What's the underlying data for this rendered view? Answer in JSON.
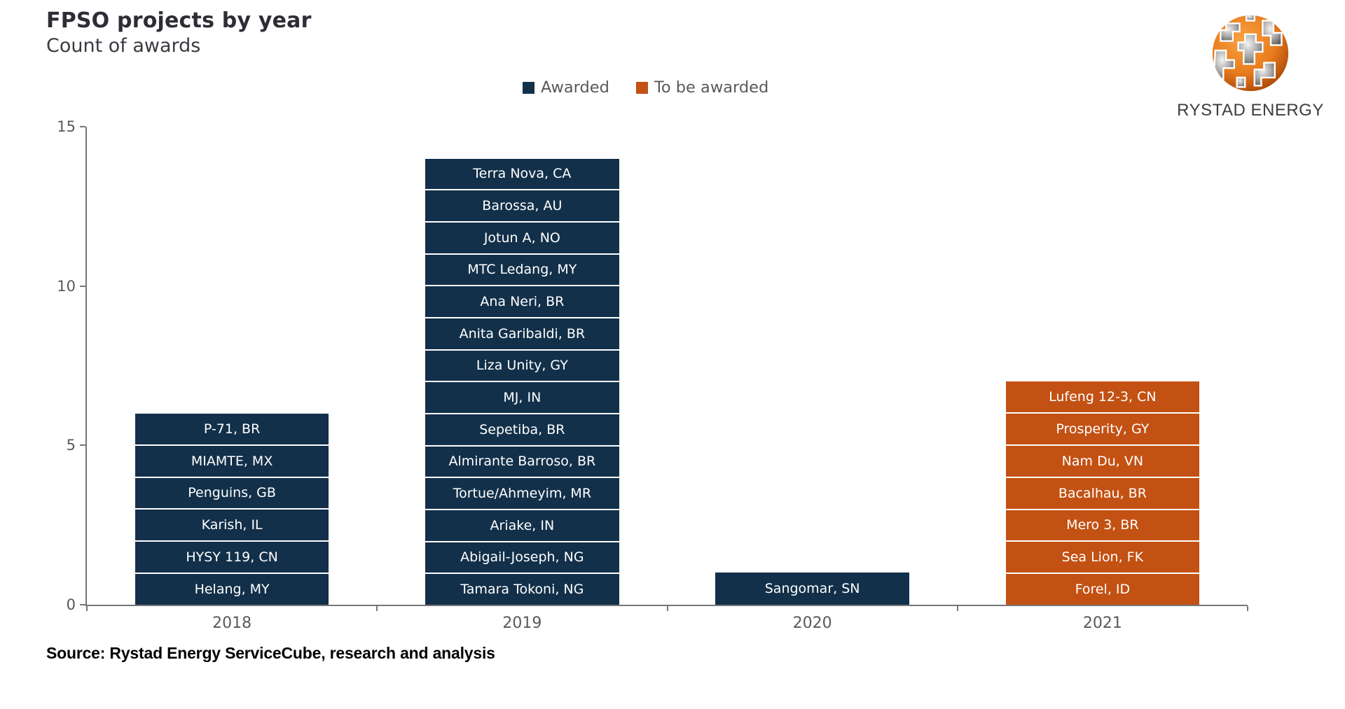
{
  "header": {
    "title": "FPSO projects by year",
    "subtitle": "Count of awards"
  },
  "branding": {
    "name": "RYSTAD ENERGY",
    "logo_orange": "#e87c1e",
    "logo_gray": "#9a9a9a"
  },
  "source_note": "Source: Rystad Energy ServiceCube, research and analysis",
  "chart_data": {
    "type": "bar",
    "stacked": true,
    "orientation": "vertical",
    "title": "FPSO projects by year",
    "subtitle": "Count of awards",
    "legend_position": "top-center",
    "grid": false,
    "y_axis": {
      "min": 0,
      "max": 15,
      "ticks": [
        0,
        5,
        10,
        15
      ]
    },
    "x_axis": {
      "categories": [
        "2018",
        "2019",
        "2020",
        "2021"
      ]
    },
    "series": [
      {
        "name": "Awarded",
        "color": "#13304a"
      },
      {
        "name": "To be awarded",
        "color": "#c25113"
      }
    ],
    "bars": [
      {
        "category": "2018",
        "series": "Awarded",
        "value": 6,
        "segments_bottom_to_top": [
          "Helang, MY",
          "HYSY 119, CN",
          "Karish, IL",
          "Penguins, GB",
          "MIAMTE, MX",
          "P-71, BR"
        ]
      },
      {
        "category": "2019",
        "series": "Awarded",
        "value": 14,
        "segments_bottom_to_top": [
          "Tamara Tokoni, NG",
          "Abigail-Joseph, NG",
          "Ariake, IN",
          "Tortue/Ahmeyim, MR",
          "Almirante Barroso, BR",
          "Sepetiba, BR",
          "MJ, IN",
          "Liza Unity, GY",
          "Anita Garibaldi, BR",
          "Ana Neri, BR",
          "MTC Ledang, MY",
          "Jotun A, NO",
          "Barossa, AU",
          "Terra Nova, CA"
        ]
      },
      {
        "category": "2020",
        "series": "Awarded",
        "value": 1,
        "segments_bottom_to_top": [
          "Sangomar, SN"
        ]
      },
      {
        "category": "2021",
        "series": "To be awarded",
        "value": 7,
        "segments_bottom_to_top": [
          "Forel, ID",
          "Sea Lion, FK",
          "Mero 3, BR",
          "Bacalhau, BR",
          "Nam Du, VN",
          "Prosperity, GY",
          "Lufeng 12-3, CN"
        ]
      }
    ],
    "styles": {
      "axis_line_color": "#767676",
      "tick_label_color": "#595959",
      "legend_text_color": "#595959",
      "segment_label_color": "#ffffff",
      "segment_gap_color": "#ffffff"
    }
  }
}
